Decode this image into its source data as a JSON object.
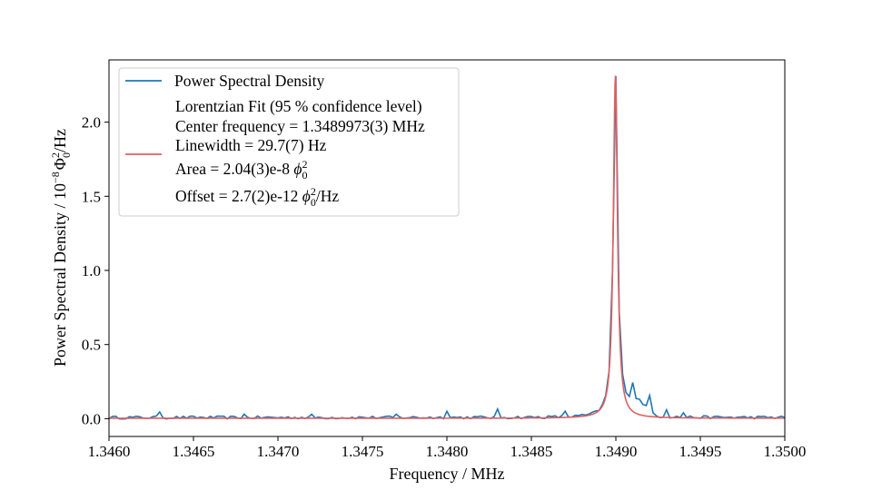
{
  "chart_data": {
    "type": "line",
    "title": "",
    "xlabel": "Frequency / MHz",
    "ylabel_parts": {
      "prefix": "Power Spectral Density / 10",
      "exp": "−8",
      "phi": "Φ",
      "sub": "0",
      "sup": "2",
      "suffix": "/Hz"
    },
    "xlim": [
      1.346,
      1.35
    ],
    "ylim": [
      -0.12,
      2.42
    ],
    "xticks": [
      1.346,
      1.3465,
      1.347,
      1.3475,
      1.348,
      1.3485,
      1.349,
      1.3495,
      1.35
    ],
    "xtick_labels": [
      "1.3460",
      "1.3465",
      "1.3470",
      "1.3475",
      "1.3480",
      "1.3485",
      "1.3490",
      "1.3495",
      "1.3500"
    ],
    "yticks": [
      0.0,
      0.5,
      1.0,
      1.5,
      2.0
    ],
    "ytick_labels": [
      "0.0",
      "0.5",
      "1.0",
      "1.5",
      "2.0"
    ],
    "legend": {
      "placement": "upper-left",
      "psd_label": "Power Spectral Density",
      "fit_title": "Lorentzian Fit (95 % confidence level)",
      "center": "Center frequency = 1.3489973(3) MHz",
      "linewidth": "Linewidth = 29.7(7) Hz",
      "area_prefix": "Area = 2.04(3)e-8 ",
      "offset_prefix": "Offset = 2.7(2)e-12 ",
      "phi_symbol": "ϕ",
      "phi_sub": "0",
      "phi_sup": "2",
      "per_hz": "/Hz"
    },
    "series": [
      {
        "name": "Power Spectral Density",
        "color": "#1f77b4",
        "kind": "noisy-data",
        "x_start": 1.346,
        "x_end": 1.35,
        "points": 200,
        "spikes": [
          {
            "x": 1.3463,
            "y": 0.045
          },
          {
            "x": 1.3468,
            "y": 0.03
          },
          {
            "x": 1.3472,
            "y": 0.03
          },
          {
            "x": 1.3477,
            "y": 0.03
          },
          {
            "x": 1.348,
            "y": 0.05
          },
          {
            "x": 1.3483,
            "y": 0.065
          },
          {
            "x": 1.3487,
            "y": 0.05
          },
          {
            "x": 1.3491,
            "y": 0.15
          },
          {
            "x": 1.3492,
            "y": 0.12
          },
          {
            "x": 1.3493,
            "y": 0.06
          },
          {
            "x": 1.3494,
            "y": 0.04
          }
        ]
      },
      {
        "name": "Lorentzian Fit",
        "color": "#e06060",
        "kind": "lorentzian",
        "center_mhz": 1.3489973,
        "linewidth_hz": 29.7,
        "peak": 2.3,
        "offset": 0.0027
      }
    ],
    "peak_value": 2.31
  }
}
